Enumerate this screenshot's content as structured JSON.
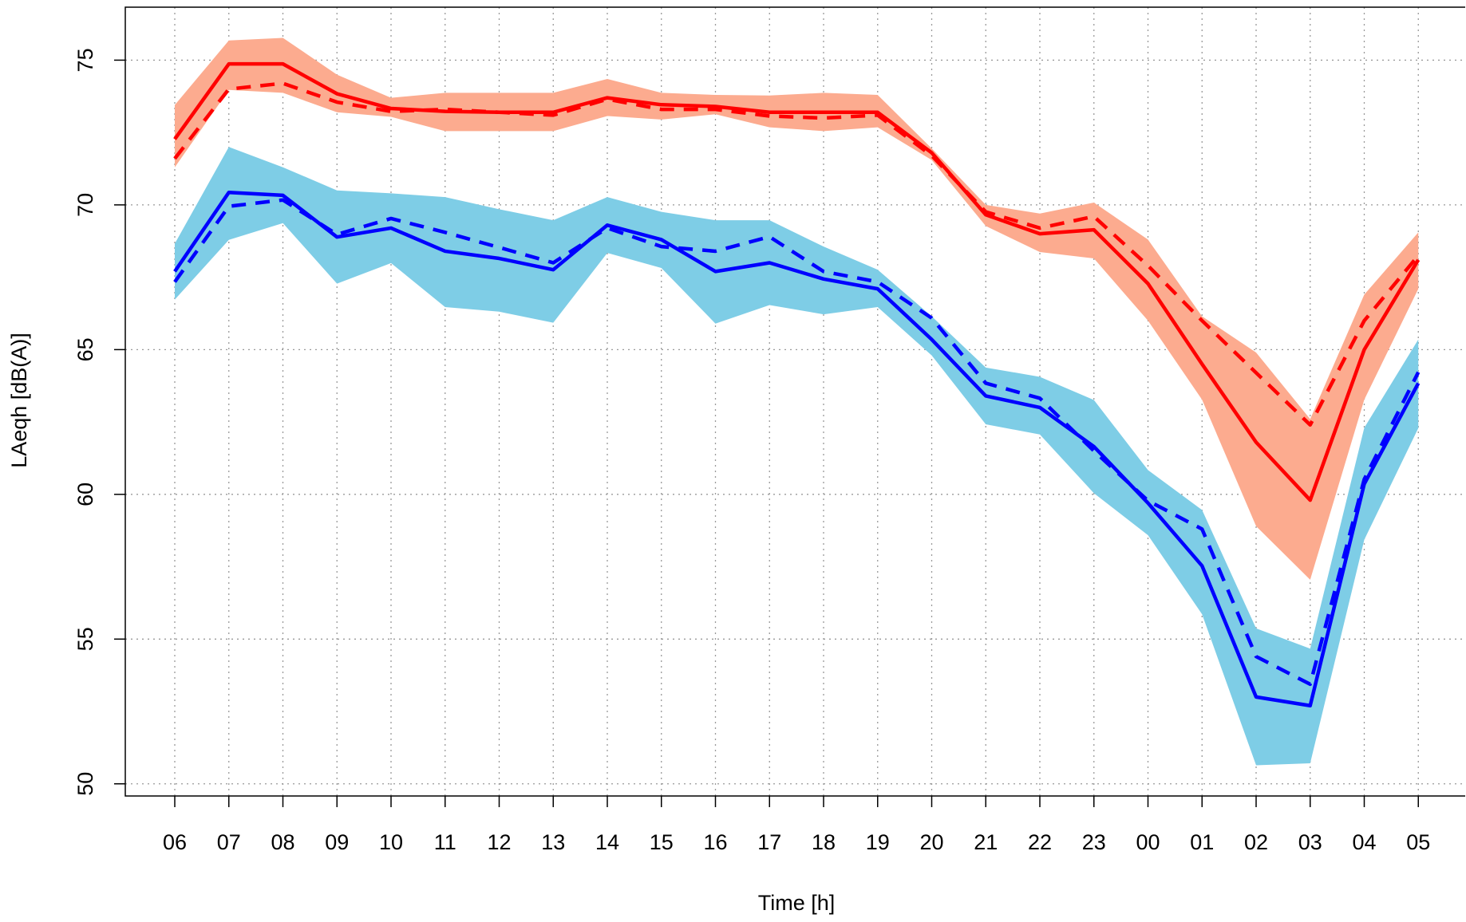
{
  "chart_data": {
    "type": "line",
    "x_label": "Time [h]",
    "y_label": "LAeqh [dB(A)]",
    "categories": [
      "06",
      "07",
      "08",
      "09",
      "10",
      "11",
      "12",
      "13",
      "14",
      "15",
      "16",
      "17",
      "18",
      "19",
      "20",
      "21",
      "22",
      "23",
      "00",
      "01",
      "02",
      "03",
      "04",
      "05"
    ],
    "ylim": [
      49.58,
      76.83
    ],
    "yticks": [
      50,
      55,
      60,
      65,
      70,
      75
    ],
    "grid": true,
    "bands": [
      {
        "color": "#fcab8f",
        "upper": [
          73.45,
          75.68,
          75.77,
          74.5,
          73.7,
          73.87,
          73.87,
          73.87,
          74.35,
          73.87,
          73.8,
          73.78,
          73.87,
          73.8,
          71.95,
          70.0,
          69.7,
          70.08,
          68.8,
          66.15,
          64.9,
          62.6,
          66.9,
          69.05
        ],
        "lower": [
          71.3,
          73.97,
          73.87,
          73.2,
          73.04,
          72.55,
          72.55,
          72.55,
          73.07,
          72.95,
          73.13,
          72.68,
          72.55,
          72.68,
          71.55,
          69.27,
          68.37,
          68.15,
          66.0,
          63.27,
          58.9,
          57.05,
          63.27,
          67.1
        ]
      },
      {
        "color": "#7ecde6",
        "upper": [
          68.66,
          72.0,
          71.3,
          70.5,
          70.4,
          70.27,
          69.85,
          69.47,
          70.27,
          69.76,
          69.47,
          69.47,
          68.56,
          67.76,
          66.15,
          64.38,
          64.06,
          63.26,
          60.84,
          59.46,
          55.37,
          54.67,
          62.3,
          65.35
        ],
        "lower": [
          66.73,
          68.79,
          69.37,
          67.28,
          67.99,
          66.47,
          66.31,
          65.93,
          68.34,
          67.82,
          65.9,
          66.54,
          66.22,
          66.47,
          64.8,
          62.42,
          62.07,
          60.04,
          58.59,
          55.86,
          50.64,
          50.71,
          58.43,
          62.29
        ]
      }
    ],
    "series": [
      {
        "color": "#ff0000",
        "dashed": false,
        "values": [
          72.27,
          74.87,
          74.87,
          73.84,
          73.33,
          73.23,
          73.2,
          73.2,
          73.7,
          73.46,
          73.4,
          73.2,
          73.2,
          73.2,
          71.8,
          69.66,
          69.0,
          69.14,
          67.28,
          64.5,
          61.8,
          59.8,
          65.0,
          68.1
        ]
      },
      {
        "color": "#ff0000",
        "dashed": true,
        "values": [
          71.6,
          74.0,
          74.2,
          73.55,
          73.23,
          73.3,
          73.2,
          73.1,
          73.65,
          73.3,
          73.3,
          73.07,
          73.0,
          73.1,
          71.7,
          69.76,
          69.2,
          69.6,
          67.9,
          66.0,
          64.2,
          62.4,
          66.0,
          68.25
        ]
      },
      {
        "color": "#0000ff",
        "dashed": false,
        "values": [
          67.7,
          70.43,
          70.33,
          68.89,
          69.2,
          68.4,
          68.15,
          67.76,
          69.3,
          68.8,
          67.7,
          68.0,
          67.44,
          67.1,
          65.35,
          63.4,
          63.0,
          61.65,
          59.7,
          57.53,
          53.0,
          52.7,
          60.36,
          63.84
        ]
      },
      {
        "color": "#0000ff",
        "dashed": true,
        "values": [
          67.34,
          69.95,
          70.17,
          68.98,
          69.53,
          69.05,
          68.53,
          68.0,
          69.2,
          68.56,
          68.4,
          68.9,
          67.7,
          67.34,
          66.09,
          63.84,
          63.32,
          61.5,
          59.78,
          58.8,
          54.4,
          53.44,
          60.52,
          64.22
        ]
      }
    ]
  }
}
